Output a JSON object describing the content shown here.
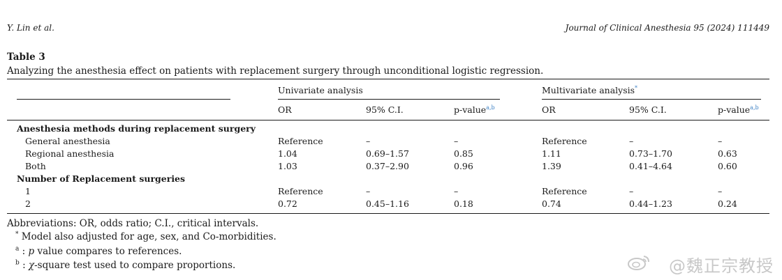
{
  "header": {
    "authors": "Y. Lin et al.",
    "journal": "Journal of Clinical Anesthesia 95 (2024) 111449"
  },
  "table": {
    "label": "Table 3",
    "caption": "Analyzing the anesthesia effect on patients with replacement surgery through unconditional logistic regression.",
    "group_headers": {
      "univariate": "Univariate analysis",
      "multivariate": "Multivariate analysis",
      "multivariate_mark": "*"
    },
    "col_headers": {
      "or": "OR",
      "ci": "95% C.I.",
      "p": "p-value",
      "p_mark": "a,b"
    },
    "sections": [
      {
        "title": "Anesthesia methods during replacement surgery",
        "rows": [
          {
            "label": "General anesthesia",
            "u_or": "Reference",
            "u_ci": "–",
            "u_p": "–",
            "m_or": "Reference",
            "m_ci": "–",
            "m_p": "–"
          },
          {
            "label": "Regional anesthesia",
            "u_or": "1.04",
            "u_ci": "0.69–1.57",
            "u_p": "0.85",
            "m_or": "1.11",
            "m_ci": "0.73–1.70",
            "m_p": "0.63"
          },
          {
            "label": "Both",
            "u_or": "1.03",
            "u_ci": "0.37–2.90",
            "u_p": "0.96",
            "m_or": "1.39",
            "m_ci": "0.41–4.64",
            "m_p": "0.60"
          }
        ]
      },
      {
        "title": "Number of Replacement surgeries",
        "rows": [
          {
            "label": "1",
            "u_or": "Reference",
            "u_ci": "–",
            "u_p": "–",
            "m_or": "Reference",
            "m_ci": "–",
            "m_p": "–"
          },
          {
            "label": "2",
            "u_or": "0.72",
            "u_ci": "0.45–1.16",
            "u_p": "0.18",
            "m_or": "0.74",
            "m_ci": "0.44–1.23",
            "m_p": "0.24"
          }
        ]
      }
    ]
  },
  "footnotes": {
    "abbreviations": "Abbreviations: OR, odds ratio; C.I., critical intervals.",
    "star_mark": "*",
    "star_text": "Model also adjusted for age, sex, and Co-morbidities.",
    "a_mark": "a",
    "a_text_prefix": ": ",
    "a_text_italic": "p",
    "a_text_rest": " value compares to references.",
    "b_mark": "b",
    "b_text_prefix": ": ",
    "b_text_italic": "χ",
    "b_text_rest": "-square test used to compare proportions."
  },
  "watermark": {
    "text": "@魏正宗教授",
    "icon": "weibo-logo-icon"
  },
  "colors": {
    "link_blue": "#3b7fc4",
    "text": "#1a1a1a",
    "watermark": "#c8c8c8"
  }
}
